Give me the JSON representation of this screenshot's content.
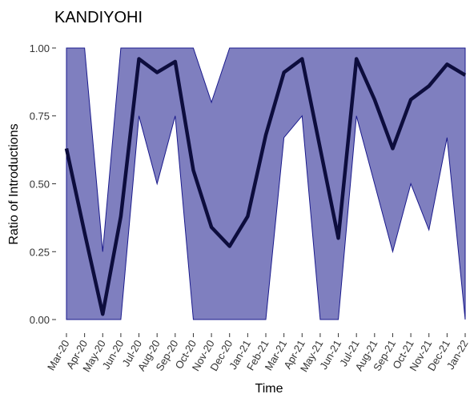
{
  "chart_data": {
    "type": "line",
    "title": "KANDIYOHI",
    "x_label": "Time",
    "y_label": "Ratio of Introductions",
    "categories": [
      "Mar-20",
      "Apr-20",
      "May-20",
      "Jun-20",
      "Jul-20",
      "Aug-20",
      "Sep-20",
      "Oct-20",
      "Nov-20",
      "Dec-20",
      "Jan-21",
      "Feb-21",
      "Mar-21",
      "Apr-21",
      "May-21",
      "Jun-21",
      "Jul-21",
      "Aug-21",
      "Sep-21",
      "Oct-21",
      "Nov-21",
      "Dec-21",
      "Jan-22"
    ],
    "values": [
      0.63,
      0.32,
      0.02,
      0.38,
      0.96,
      0.91,
      0.95,
      0.55,
      0.34,
      0.27,
      0.38,
      0.68,
      0.91,
      0.96,
      0.63,
      0.3,
      0.96,
      0.81,
      0.63,
      0.81,
      0.86,
      0.94,
      0.9
    ],
    "lower": [
      0,
      0,
      0,
      0,
      0.75,
      0.5,
      0.75,
      0,
      0,
      0,
      0,
      0,
      0.67,
      0.75,
      0,
      0,
      0.75,
      0.5,
      0.25,
      0.5,
      0.33,
      0.67,
      0
    ],
    "upper": [
      1,
      1,
      0.25,
      1,
      1,
      1,
      1,
      1,
      0.8,
      1,
      1,
      1,
      1,
      1,
      1,
      1,
      1,
      1,
      1,
      1,
      1,
      1,
      1
    ],
    "color": "#0d0d3d",
    "band_color": "#7f7fbf",
    "band_edge_color": "#1a1a8c",
    "ylim": [
      -0.05,
      1.05
    ],
    "yticks": [
      {
        "value": 0,
        "label": "0.00"
      },
      {
        "value": 0.25,
        "label": "0.25"
      },
      {
        "value": 0.5,
        "label": "0.50"
      },
      {
        "value": 0.75,
        "label": "0.75"
      },
      {
        "value": 1,
        "label": "1.00"
      }
    ]
  }
}
